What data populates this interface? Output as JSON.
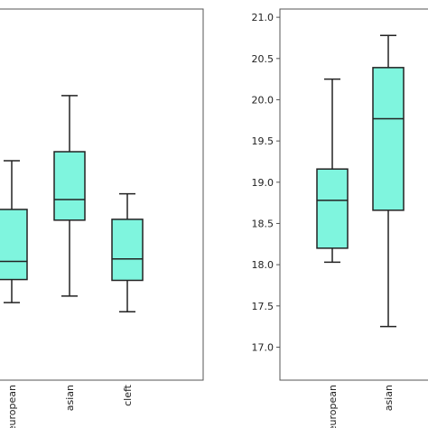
{
  "chart_data": [
    {
      "type": "box",
      "categories": [
        "european",
        "asian",
        "cleft"
      ],
      "color": "#7ff5de",
      "boxes": [
        {
          "min": 17.54,
          "q1": 17.82,
          "median": 18.04,
          "q3": 18.67,
          "max": 19.26
        },
        {
          "min": 17.62,
          "q1": 18.54,
          "median": 18.79,
          "q3": 19.37,
          "max": 20.05
        },
        {
          "min": 17.43,
          "q1": 17.81,
          "median": 18.07,
          "q3": 18.55,
          "max": 18.86
        }
      ],
      "ylim": [
        16.6,
        21.1
      ]
    },
    {
      "type": "box",
      "categories": [
        "european",
        "asian"
      ],
      "color": "#7ff5de",
      "boxes": [
        {
          "min": 18.03,
          "q1": 18.2,
          "median": 18.78,
          "q3": 19.16,
          "max": 20.25
        },
        {
          "min": 17.25,
          "q1": 18.66,
          "median": 19.77,
          "q3": 20.39,
          "max": 20.78
        }
      ],
      "ylim": [
        16.6,
        21.1
      ],
      "yticks": [
        {
          "value": 17.0,
          "label": "17.0"
        },
        {
          "value": 17.5,
          "label": "17.5"
        },
        {
          "value": 18.0,
          "label": "18.0"
        },
        {
          "value": 18.5,
          "label": "18.5"
        },
        {
          "value": 19.0,
          "label": "19.0"
        },
        {
          "value": 19.5,
          "label": "19.5"
        },
        {
          "value": 20.0,
          "label": "20.0"
        },
        {
          "value": 20.5,
          "label": "20.5"
        },
        {
          "value": 21.0,
          "label": "21.0"
        }
      ]
    }
  ]
}
